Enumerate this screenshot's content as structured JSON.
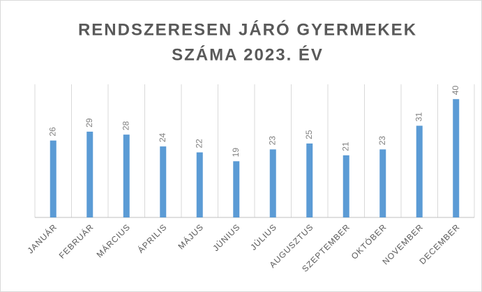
{
  "chart_data": {
    "type": "bar",
    "title": [
      "RENDSZERESEN JÁRÓ GYERMEKEK",
      "SZÁMA 2023. ÉV"
    ],
    "categories": [
      "JANUÁR",
      "FEBRUÁR",
      "MÁRCIUS",
      "ÁPRILIS",
      "MÁJUS",
      "JÚNIUS",
      "JÚLIUS",
      "AUGUSZTUS",
      "SZEPTEMBER",
      "OKTÓBER",
      "NOVEMBER",
      "DECEMBER"
    ],
    "values": [
      26,
      29,
      28,
      24,
      22,
      19,
      23,
      25,
      21,
      23,
      31,
      40
    ],
    "color": "#5b9bd5",
    "ylim": [
      0,
      45
    ]
  }
}
